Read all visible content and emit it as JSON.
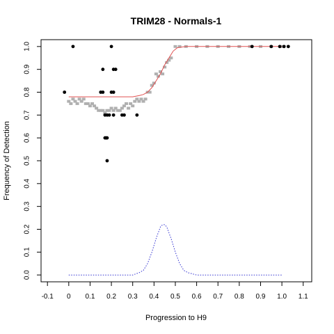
{
  "chart_data": {
    "type": "scatter",
    "title": "TRIM28 - Normals-1",
    "xlabel": "Progression to H9",
    "ylabel": "Frequency of Detection",
    "xlim": [
      -0.13,
      1.14
    ],
    "ylim": [
      -0.03,
      1.03
    ],
    "x_ticks": [
      "-0.1",
      "0",
      "0.1",
      "0.2",
      "0.3",
      "0.4",
      "0.5",
      "0.6",
      "0.7",
      "0.8",
      "0.9",
      "1.0",
      "1.1"
    ],
    "x_tick_values": [
      -0.1,
      0,
      0.1,
      0.2,
      0.3,
      0.4,
      0.5,
      0.6,
      0.7,
      0.8,
      0.9,
      1.0,
      1.1
    ],
    "y_ticks": [
      "0.0",
      "0.1",
      "0.2",
      "0.3",
      "0.4",
      "0.5",
      "0.6",
      "0.7",
      "0.8",
      "0.9",
      "1.0"
    ],
    "y_tick_values": [
      0,
      0.1,
      0.2,
      0.3,
      0.4,
      0.5,
      0.6,
      0.7,
      0.8,
      0.9,
      1.0
    ],
    "grid": false,
    "legend": "none",
    "series": [
      {
        "kind": "points",
        "color": "#000000",
        "points": [
          [
            -0.02,
            0.8
          ],
          [
            0.02,
            1.0
          ],
          [
            0.15,
            0.8
          ],
          [
            0.16,
            0.8
          ],
          [
            0.16,
            0.9
          ],
          [
            0.17,
            0.6
          ],
          [
            0.17,
            0.7
          ],
          [
            0.175,
            0.6
          ],
          [
            0.18,
            0.6
          ],
          [
            0.18,
            0.5
          ],
          [
            0.18,
            0.7
          ],
          [
            0.19,
            0.7
          ],
          [
            0.2,
            1.0
          ],
          [
            0.2,
            0.8
          ],
          [
            0.21,
            0.8
          ],
          [
            0.21,
            0.7
          ],
          [
            0.21,
            0.9
          ],
          [
            0.22,
            0.9
          ],
          [
            0.25,
            0.7
          ],
          [
            0.26,
            0.7
          ],
          [
            0.32,
            0.7
          ],
          [
            0.86,
            1.0
          ],
          [
            0.95,
            1.0
          ],
          [
            0.99,
            1.0
          ],
          [
            1.01,
            1.0
          ],
          [
            1.03,
            1.0
          ]
        ]
      },
      {
        "kind": "smoothed-points",
        "color": "#b0b0b0",
        "points": [
          [
            0.0,
            0.76
          ],
          [
            0.01,
            0.75
          ],
          [
            0.02,
            0.77
          ],
          [
            0.03,
            0.76
          ],
          [
            0.04,
            0.75
          ],
          [
            0.05,
            0.77
          ],
          [
            0.06,
            0.76
          ],
          [
            0.07,
            0.77
          ],
          [
            0.08,
            0.75
          ],
          [
            0.09,
            0.75
          ],
          [
            0.1,
            0.74
          ],
          [
            0.11,
            0.75
          ],
          [
            0.12,
            0.74
          ],
          [
            0.13,
            0.73
          ],
          [
            0.14,
            0.72
          ],
          [
            0.15,
            0.72
          ],
          [
            0.16,
            0.72
          ],
          [
            0.17,
            0.71
          ],
          [
            0.18,
            0.72
          ],
          [
            0.19,
            0.72
          ],
          [
            0.2,
            0.73
          ],
          [
            0.21,
            0.72
          ],
          [
            0.22,
            0.73
          ],
          [
            0.23,
            0.72
          ],
          [
            0.24,
            0.72
          ],
          [
            0.25,
            0.73
          ],
          [
            0.26,
            0.74
          ],
          [
            0.27,
            0.75
          ],
          [
            0.28,
            0.73
          ],
          [
            0.29,
            0.75
          ],
          [
            0.3,
            0.74
          ],
          [
            0.31,
            0.76
          ],
          [
            0.32,
            0.77
          ],
          [
            0.33,
            0.76
          ],
          [
            0.34,
            0.77
          ],
          [
            0.35,
            0.76
          ],
          [
            0.36,
            0.77
          ],
          [
            0.37,
            0.8
          ],
          [
            0.38,
            0.8
          ],
          [
            0.39,
            0.83
          ],
          [
            0.4,
            0.84
          ],
          [
            0.41,
            0.88
          ],
          [
            0.42,
            0.87
          ],
          [
            0.43,
            0.89
          ],
          [
            0.44,
            0.88
          ],
          [
            0.45,
            0.91
          ],
          [
            0.46,
            0.93
          ],
          [
            0.47,
            0.94
          ],
          [
            0.48,
            0.95
          ],
          [
            0.5,
            1.0
          ],
          [
            0.52,
            1.0
          ],
          [
            0.55,
            1.0
          ],
          [
            0.6,
            1.0
          ],
          [
            0.65,
            1.0
          ],
          [
            0.7,
            1.0
          ],
          [
            0.75,
            1.0
          ],
          [
            0.8,
            1.0
          ],
          [
            0.85,
            1.0
          ],
          [
            0.9,
            1.0
          ],
          [
            0.95,
            1.0
          ],
          [
            1.0,
            1.0
          ]
        ]
      },
      {
        "kind": "fitted-curve",
        "color": "#e05050",
        "style": "solid",
        "points": [
          [
            0.0,
            0.78
          ],
          [
            0.05,
            0.78
          ],
          [
            0.1,
            0.78
          ],
          [
            0.15,
            0.78
          ],
          [
            0.2,
            0.78
          ],
          [
            0.25,
            0.78
          ],
          [
            0.3,
            0.78
          ],
          [
            0.33,
            0.785
          ],
          [
            0.35,
            0.79
          ],
          [
            0.37,
            0.8
          ],
          [
            0.39,
            0.82
          ],
          [
            0.41,
            0.85
          ],
          [
            0.43,
            0.88
          ],
          [
            0.45,
            0.92
          ],
          [
            0.47,
            0.95
          ],
          [
            0.49,
            0.98
          ],
          [
            0.51,
            0.995
          ],
          [
            0.55,
            1.0
          ],
          [
            0.6,
            1.0
          ],
          [
            0.7,
            1.0
          ],
          [
            0.8,
            1.0
          ],
          [
            0.9,
            1.0
          ],
          [
            1.0,
            1.0
          ]
        ]
      },
      {
        "kind": "density-curve",
        "color": "#3030d0",
        "style": "dotted",
        "points": [
          [
            0.0,
            0.0
          ],
          [
            0.1,
            0.0
          ],
          [
            0.2,
            0.0
          ],
          [
            0.3,
            0.0
          ],
          [
            0.33,
            0.01
          ],
          [
            0.35,
            0.02
          ],
          [
            0.37,
            0.05
          ],
          [
            0.39,
            0.1
          ],
          [
            0.41,
            0.16
          ],
          [
            0.43,
            0.21
          ],
          [
            0.44,
            0.22
          ],
          [
            0.45,
            0.22
          ],
          [
            0.46,
            0.21
          ],
          [
            0.48,
            0.16
          ],
          [
            0.5,
            0.1
          ],
          [
            0.52,
            0.05
          ],
          [
            0.54,
            0.02
          ],
          [
            0.56,
            0.01
          ],
          [
            0.6,
            0.0
          ],
          [
            0.7,
            0.0
          ],
          [
            0.8,
            0.0
          ],
          [
            0.9,
            0.0
          ],
          [
            1.0,
            0.0
          ]
        ]
      }
    ]
  }
}
